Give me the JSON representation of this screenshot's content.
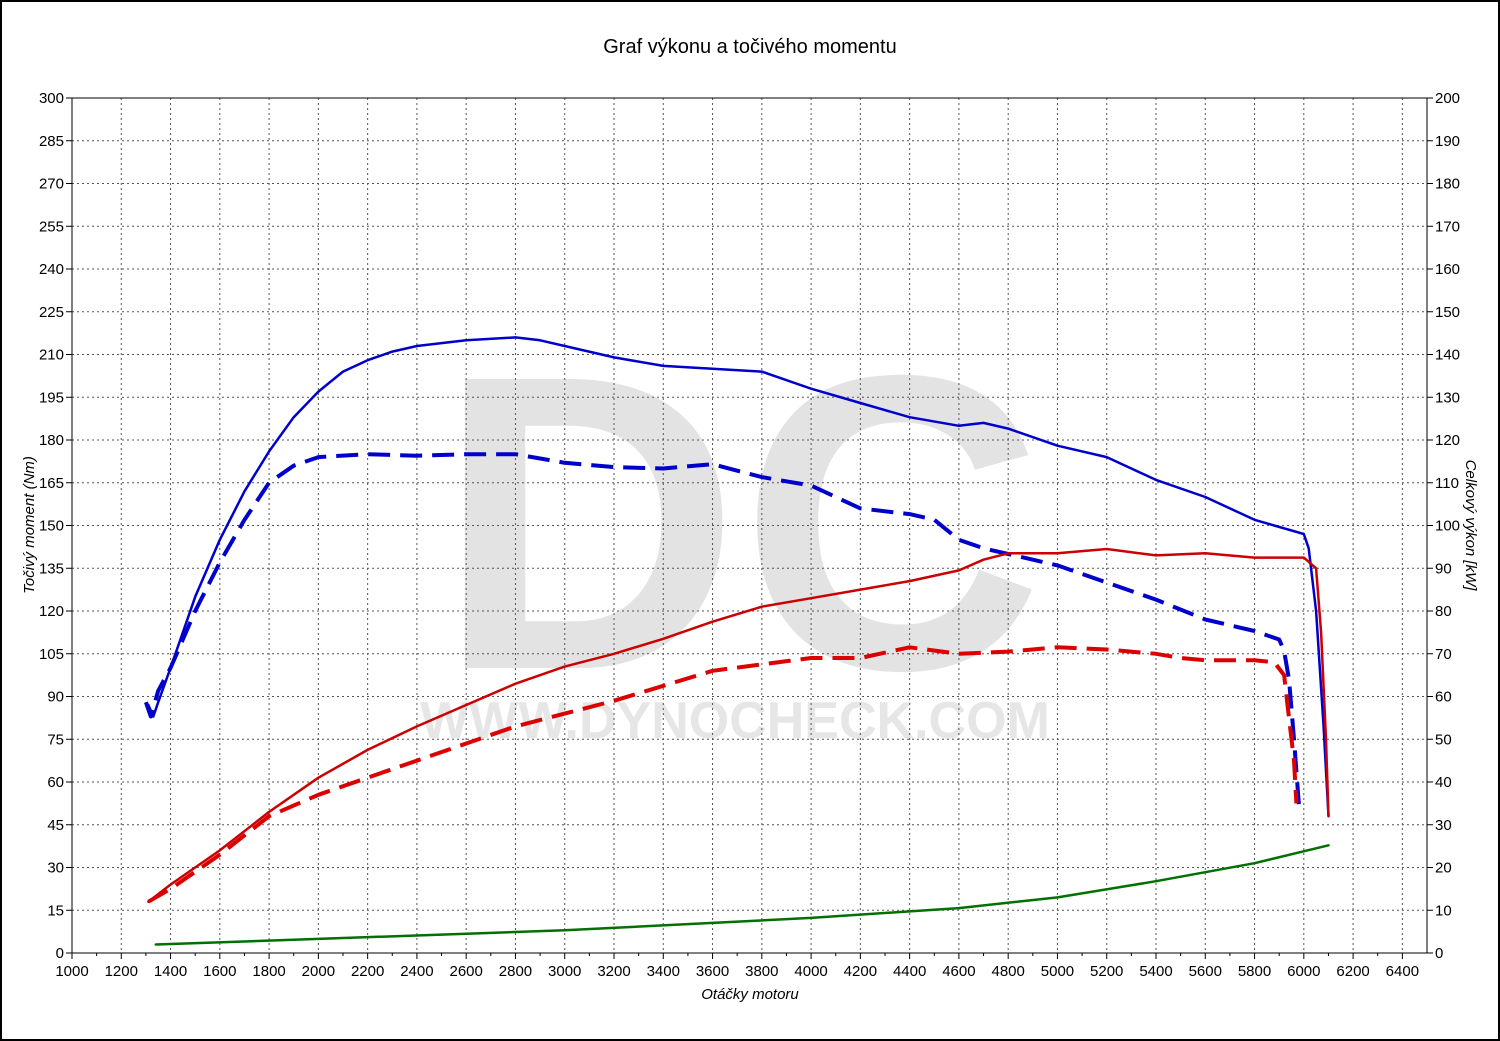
{
  "chart_data": {
    "type": "line",
    "title": "Graf výkonu a točivého momentu",
    "xlabel": "Otáčky motoru",
    "ylabel_left": "Točivý moment (Nm)",
    "ylabel_right": "Celkový výkon [kW]",
    "xlim": [
      1000,
      6500
    ],
    "ylim_left": [
      0,
      300
    ],
    "ylim_right": [
      0,
      200
    ],
    "x_ticks": [
      "1000",
      "1200",
      "1400",
      "1600",
      "1800",
      "2000",
      "2200",
      "2400",
      "2600",
      "2800",
      "3000",
      "3200",
      "3400",
      "3600",
      "3800",
      "4000",
      "4200",
      "4400",
      "4600",
      "4800",
      "5000",
      "5200",
      "5400",
      "5600",
      "5800",
      "6000",
      "6200",
      "6400"
    ],
    "y_left_ticks": [
      "0",
      "15",
      "30",
      "45",
      "60",
      "75",
      "90",
      "105",
      "120",
      "135",
      "150",
      "165",
      "180",
      "195",
      "210",
      "225",
      "240",
      "255",
      "270",
      "285",
      "300"
    ],
    "y_right_ticks": [
      "0",
      "10",
      "20",
      "30",
      "40",
      "50",
      "60",
      "70",
      "80",
      "90",
      "100",
      "110",
      "120",
      "130",
      "140",
      "150",
      "160",
      "170",
      "180",
      "190",
      "200"
    ],
    "grid": true,
    "watermark": {
      "logo": "DC",
      "url": "WWW.DYNOCHECK.COM"
    },
    "series": [
      {
        "key": "torque_tuned",
        "axis": "left",
        "color": "#0000cc",
        "style": "solid",
        "points": [
          [
            1310,
            87
          ],
          [
            1330,
            83
          ],
          [
            1350,
            88
          ],
          [
            1400,
            100
          ],
          [
            1500,
            125
          ],
          [
            1600,
            145
          ],
          [
            1700,
            162
          ],
          [
            1800,
            176
          ],
          [
            1900,
            188
          ],
          [
            2000,
            197
          ],
          [
            2100,
            204
          ],
          [
            2200,
            208
          ],
          [
            2300,
            211
          ],
          [
            2400,
            213
          ],
          [
            2600,
            215
          ],
          [
            2800,
            216
          ],
          [
            2900,
            215
          ],
          [
            3000,
            213
          ],
          [
            3200,
            209
          ],
          [
            3400,
            206
          ],
          [
            3600,
            205
          ],
          [
            3800,
            204
          ],
          [
            4000,
            198
          ],
          [
            4200,
            193
          ],
          [
            4400,
            188
          ],
          [
            4600,
            185
          ],
          [
            4700,
            186
          ],
          [
            4800,
            184
          ],
          [
            5000,
            178
          ],
          [
            5200,
            174
          ],
          [
            5400,
            166
          ],
          [
            5600,
            160
          ],
          [
            5800,
            152
          ],
          [
            6000,
            147
          ],
          [
            6020,
            142
          ],
          [
            6050,
            120
          ],
          [
            6080,
            80
          ],
          [
            6100,
            48
          ]
        ]
      },
      {
        "key": "torque_stock",
        "axis": "left",
        "color": "#0000cc",
        "style": "dashed",
        "points": [
          [
            1300,
            88
          ],
          [
            1320,
            83
          ],
          [
            1350,
            92
          ],
          [
            1400,
            100
          ],
          [
            1500,
            120
          ],
          [
            1600,
            137
          ],
          [
            1700,
            152
          ],
          [
            1800,
            165
          ],
          [
            1900,
            171
          ],
          [
            2000,
            174
          ],
          [
            2200,
            175
          ],
          [
            2400,
            174.5
          ],
          [
            2600,
            175
          ],
          [
            2800,
            175
          ],
          [
            3000,
            172
          ],
          [
            3200,
            170.5
          ],
          [
            3400,
            170
          ],
          [
            3600,
            171.5
          ],
          [
            3800,
            167
          ],
          [
            4000,
            164
          ],
          [
            4200,
            156
          ],
          [
            4400,
            154
          ],
          [
            4500,
            152
          ],
          [
            4600,
            145
          ],
          [
            4700,
            142
          ],
          [
            4800,
            140
          ],
          [
            5000,
            136
          ],
          [
            5200,
            130
          ],
          [
            5400,
            124
          ],
          [
            5600,
            117
          ],
          [
            5800,
            113
          ],
          [
            5900,
            110
          ],
          [
            5920,
            106
          ],
          [
            5940,
            96
          ],
          [
            5960,
            75
          ],
          [
            5980,
            52
          ]
        ]
      },
      {
        "key": "power_tuned",
        "axis": "right",
        "color": "#cc0000",
        "style": "solid",
        "points": [
          [
            1310,
            12
          ],
          [
            1400,
            16
          ],
          [
            1600,
            24
          ],
          [
            1800,
            33
          ],
          [
            2000,
            41
          ],
          [
            2200,
            47.5
          ],
          [
            2400,
            53
          ],
          [
            2600,
            58
          ],
          [
            2800,
            63
          ],
          [
            3000,
            67
          ],
          [
            3200,
            70
          ],
          [
            3400,
            73.5
          ],
          [
            3600,
            77.5
          ],
          [
            3800,
            81
          ],
          [
            4000,
            83
          ],
          [
            4200,
            85
          ],
          [
            4400,
            87
          ],
          [
            4600,
            89.5
          ],
          [
            4700,
            92
          ],
          [
            4800,
            93.5
          ],
          [
            5000,
            93.5
          ],
          [
            5200,
            94.5
          ],
          [
            5400,
            93
          ],
          [
            5600,
            93.5
          ],
          [
            5800,
            92.5
          ],
          [
            6000,
            92.5
          ],
          [
            6050,
            90
          ],
          [
            6070,
            75
          ],
          [
            6090,
            50
          ],
          [
            6100,
            32
          ]
        ]
      },
      {
        "key": "power_stock",
        "axis": "right",
        "color": "#dd0000",
        "style": "dashed",
        "points": [
          [
            1310,
            12
          ],
          [
            1400,
            15
          ],
          [
            1600,
            23
          ],
          [
            1800,
            32
          ],
          [
            2000,
            37
          ],
          [
            2200,
            41
          ],
          [
            2400,
            45
          ],
          [
            2600,
            49
          ],
          [
            2800,
            53
          ],
          [
            3000,
            56
          ],
          [
            3200,
            59
          ],
          [
            3400,
            62.5
          ],
          [
            3600,
            66
          ],
          [
            3800,
            67.5
          ],
          [
            4000,
            69
          ],
          [
            4200,
            69
          ],
          [
            4400,
            71.5
          ],
          [
            4600,
            70
          ],
          [
            4800,
            70.5
          ],
          [
            5000,
            71.5
          ],
          [
            5200,
            71
          ],
          [
            5400,
            70
          ],
          [
            5500,
            69
          ],
          [
            5600,
            68.5
          ],
          [
            5800,
            68.5
          ],
          [
            5880,
            68
          ],
          [
            5920,
            65
          ],
          [
            5940,
            55
          ],
          [
            5960,
            45
          ],
          [
            5970,
            35
          ]
        ]
      },
      {
        "key": "power_loss",
        "axis": "right",
        "color": "#007000",
        "style": "solid",
        "points": [
          [
            1340,
            2
          ],
          [
            2000,
            3.3
          ],
          [
            3000,
            5.3
          ],
          [
            4000,
            8.2
          ],
          [
            4600,
            10.5
          ],
          [
            5000,
            13
          ],
          [
            5400,
            16.8
          ],
          [
            5800,
            21
          ],
          [
            6100,
            25.2
          ]
        ]
      }
    ]
  }
}
